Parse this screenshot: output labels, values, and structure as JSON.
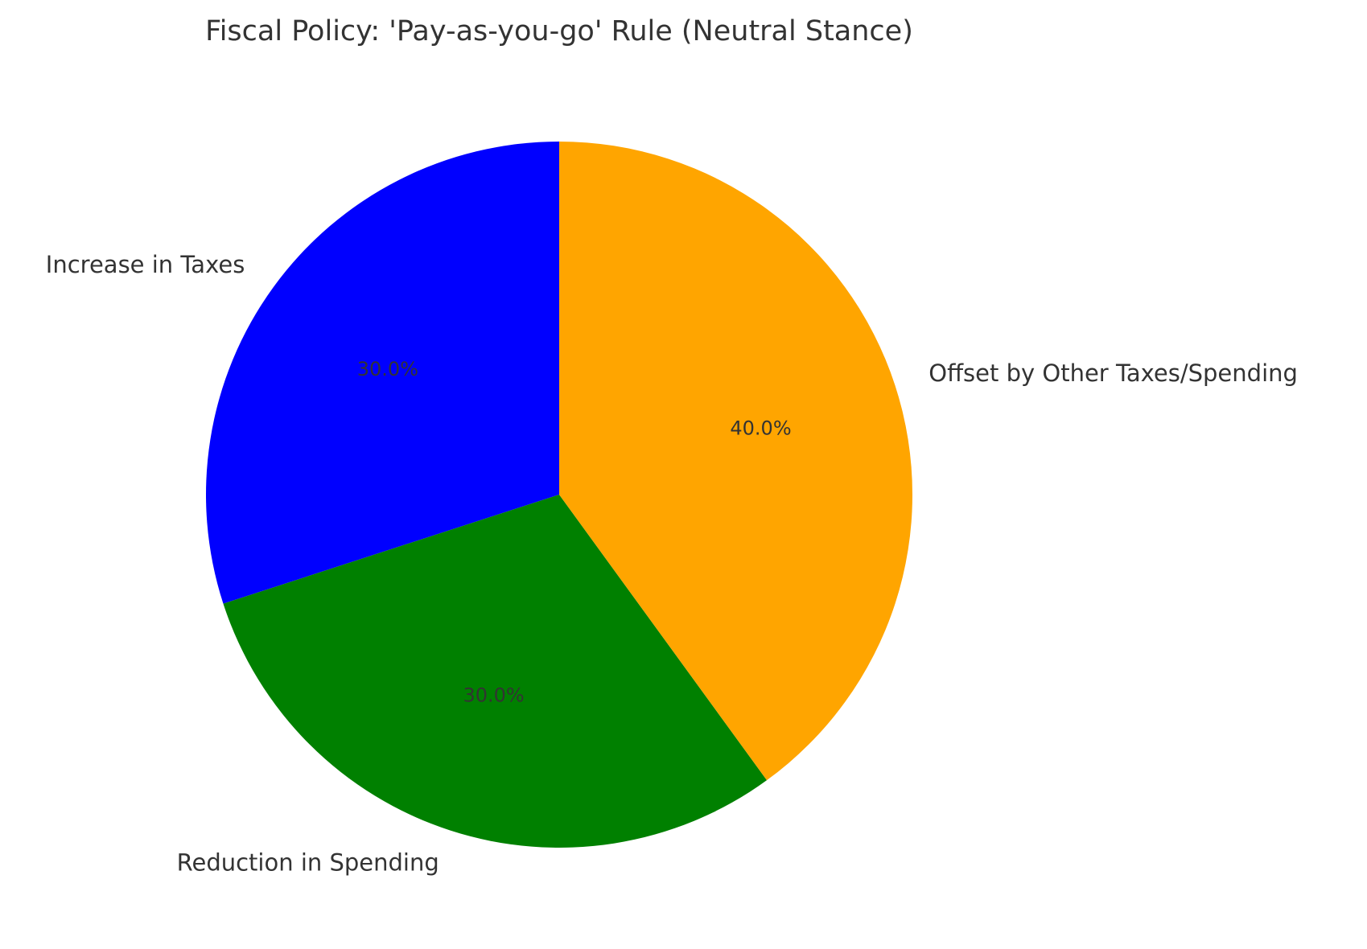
{
  "chart_data": {
    "type": "pie",
    "title": "Fiscal Policy: 'Pay-as-you-go' Rule (Neutral Stance)",
    "categories": [
      "Increase in Taxes",
      "Reduction in Spending",
      "Offset by Other Taxes/Spending"
    ],
    "values": [
      30,
      30,
      40
    ],
    "value_labels": [
      "30.0%",
      "30.0%",
      "40.0%"
    ],
    "colors": [
      "#0000ff",
      "#008000",
      "#ffa500"
    ],
    "start_angle_deg": 90,
    "direction": "counterclockwise",
    "legend": "none"
  }
}
